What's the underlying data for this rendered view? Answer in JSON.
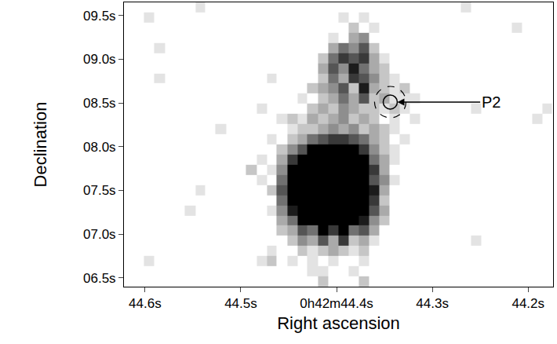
{
  "chart_data": {
    "type": "heatmap",
    "xlabel": "Right ascension",
    "ylabel": "Declination",
    "color": "#000000",
    "zlim": [
      0,
      9
    ],
    "xlim": [
      44.622,
      44.174
    ],
    "xticks": [
      {
        "value": 44.6,
        "label": "44.6s"
      },
      {
        "value": 44.5,
        "label": "44.5s"
      },
      {
        "value": 44.4,
        "label": "0h42m44.4s"
      },
      {
        "value": 44.3,
        "label": "44.3s"
      },
      {
        "value": 44.2,
        "label": "44.2s"
      }
    ],
    "ylim": [
      6.4,
      9.65
    ],
    "yticks": [
      {
        "value": 6.5,
        "label": "06.5s"
      },
      {
        "value": 7.0,
        "label": "07.0s"
      },
      {
        "value": 7.5,
        "label": "07.5s"
      },
      {
        "value": 8.0,
        "label": "08.0s"
      },
      {
        "value": 8.5,
        "label": "08.5s"
      },
      {
        "value": 9.0,
        "label": "09.0s"
      },
      {
        "value": 9.5,
        "label": "09.5s"
      }
    ],
    "annotations": [
      {
        "text": "P2",
        "x": 44.344,
        "y": 8.51,
        "text_x": 44.239,
        "text_y": 8.51
      }
    ],
    "x": [
      44.617,
      44.606,
      44.596,
      44.585,
      44.574,
      44.564,
      44.553,
      44.542,
      44.532,
      44.521,
      44.51,
      44.5,
      44.489,
      44.478,
      44.468,
      44.457,
      44.446,
      44.436,
      44.425,
      44.414,
      44.404,
      44.393,
      44.382,
      44.372,
      44.361,
      44.35,
      44.34,
      44.329,
      44.318,
      44.308,
      44.297,
      44.286,
      44.276,
      44.265,
      44.254,
      44.244,
      44.233,
      44.222,
      44.212,
      44.201,
      44.19,
      44.18
    ],
    "y": [
      9.594,
      9.478,
      9.362,
      9.246,
      9.13,
      9.013,
      8.897,
      8.781,
      8.665,
      8.549,
      8.433,
      8.317,
      8.201,
      8.085,
      7.969,
      7.853,
      7.737,
      7.621,
      7.505,
      7.388,
      7.272,
      7.156,
      7.04,
      6.924,
      6.808,
      6.692,
      6.576,
      6.46
    ],
    "z": [
      [
        0,
        0,
        0,
        0,
        0,
        0,
        0,
        1,
        0,
        0,
        0,
        0,
        0,
        0,
        0,
        0,
        0,
        0,
        0,
        0,
        0,
        0,
        0,
        0,
        0,
        0,
        0,
        0,
        0,
        0,
        0,
        0,
        0,
        1,
        0,
        0,
        0,
        0,
        0,
        0,
        0,
        0
      ],
      [
        0,
        0,
        1,
        0,
        0,
        0,
        0,
        0,
        0,
        0,
        0,
        0,
        0,
        0,
        0,
        0,
        0,
        0,
        0,
        0,
        0,
        1,
        0,
        1,
        0,
        0,
        0,
        0,
        0,
        0,
        0,
        0,
        0,
        0,
        0,
        0,
        0,
        0,
        0,
        0,
        0,
        0
      ],
      [
        0,
        0,
        0,
        0,
        0,
        0,
        0,
        0,
        0,
        0,
        0,
        0,
        0,
        0,
        0,
        0,
        0,
        0,
        0,
        0,
        0,
        0,
        2,
        0,
        1,
        0,
        0,
        0,
        0,
        0,
        0,
        0,
        0,
        0,
        0,
        0,
        0,
        0,
        1,
        0,
        0,
        0
      ],
      [
        0,
        0,
        0,
        0,
        0,
        0,
        0,
        0,
        0,
        0,
        0,
        0,
        0,
        0,
        0,
        0,
        0,
        0,
        0,
        0,
        1,
        0,
        3,
        4,
        0,
        0,
        0,
        0,
        0,
        0,
        0,
        0,
        0,
        0,
        0,
        0,
        0,
        0,
        0,
        0,
        0,
        0
      ],
      [
        0,
        0,
        0,
        1,
        0,
        0,
        0,
        0,
        0,
        0,
        0,
        0,
        0,
        0,
        0,
        0,
        0,
        0,
        0,
        0,
        3,
        5,
        4,
        6,
        2,
        0,
        0,
        0,
        0,
        0,
        0,
        0,
        0,
        0,
        0,
        0,
        0,
        0,
        0,
        0,
        0,
        0
      ],
      [
        0,
        0,
        0,
        0,
        0,
        0,
        0,
        0,
        0,
        0,
        0,
        0,
        0,
        0,
        0,
        0,
        0,
        0,
        0,
        2,
        5,
        7,
        6,
        7,
        3,
        1,
        0,
        0,
        0,
        0,
        0,
        0,
        0,
        0,
        0,
        0,
        0,
        0,
        0,
        0,
        0,
        0
      ],
      [
        0,
        0,
        0,
        0,
        0,
        0,
        0,
        0,
        0,
        0,
        0,
        0,
        0,
        0,
        0,
        0,
        0,
        0,
        0,
        3,
        6,
        4,
        8,
        5,
        3,
        2,
        0,
        0,
        0,
        0,
        0,
        0,
        0,
        0,
        0,
        0,
        0,
        0,
        0,
        0,
        0,
        0
      ],
      [
        0,
        0,
        0,
        1,
        0,
        0,
        0,
        0,
        0,
        0,
        0,
        0,
        0,
        0,
        1,
        0,
        0,
        0,
        0,
        2,
        5,
        3,
        7,
        6,
        4,
        2,
        1,
        0,
        0,
        0,
        0,
        0,
        0,
        0,
        0,
        0,
        0,
        0,
        0,
        0,
        0,
        0
      ],
      [
        0,
        0,
        0,
        0,
        0,
        0,
        0,
        0,
        0,
        0,
        0,
        0,
        0,
        0,
        0,
        0,
        0,
        0,
        2,
        3,
        4,
        6,
        2,
        8,
        3,
        2,
        1,
        2,
        0,
        0,
        0,
        0,
        0,
        0,
        0,
        0,
        0,
        0,
        0,
        0,
        0,
        0
      ],
      [
        0,
        0,
        0,
        0,
        0,
        0,
        0,
        0,
        0,
        0,
        0,
        0,
        0,
        0,
        0,
        0,
        0,
        1,
        0,
        2,
        3,
        5,
        3,
        6,
        2,
        3,
        1,
        1,
        1,
        0,
        0,
        0,
        0,
        0,
        0,
        0,
        0,
        0,
        0,
        0,
        0,
        0
      ],
      [
        0,
        0,
        0,
        0,
        0,
        0,
        0,
        0,
        0,
        0,
        0,
        0,
        0,
        1,
        0,
        0,
        0,
        0,
        2,
        3,
        2,
        4,
        3,
        2,
        2,
        1,
        2,
        1,
        0,
        0,
        0,
        0,
        0,
        0,
        1,
        0,
        0,
        0,
        0,
        0,
        0,
        1
      ],
      [
        0,
        0,
        0,
        0,
        0,
        0,
        0,
        0,
        0,
        0,
        0,
        0,
        0,
        0,
        0,
        1,
        2,
        1,
        3,
        2,
        3,
        4,
        2,
        3,
        2,
        0,
        1,
        0,
        1,
        0,
        0,
        0,
        0,
        0,
        0,
        0,
        0,
        0,
        0,
        0,
        1,
        0
      ],
      [
        0,
        0,
        0,
        0,
        0,
        0,
        0,
        0,
        0,
        1,
        0,
        0,
        0,
        0,
        0,
        0,
        1,
        2,
        2,
        3,
        4,
        3,
        4,
        2,
        3,
        2,
        1,
        0,
        0,
        0,
        0,
        0,
        0,
        0,
        0,
        0,
        0,
        0,
        0,
        0,
        0,
        0
      ],
      [
        0,
        0,
        0,
        0,
        0,
        0,
        0,
        0,
        0,
        0,
        0,
        0,
        0,
        0,
        1,
        0,
        2,
        3,
        5,
        6,
        7,
        7,
        6,
        5,
        3,
        2,
        0,
        1,
        0,
        0,
        0,
        0,
        0,
        0,
        0,
        0,
        0,
        0,
        0,
        0,
        0,
        0
      ],
      [
        0,
        0,
        0,
        0,
        0,
        0,
        0,
        0,
        0,
        0,
        0,
        0,
        0,
        0,
        0,
        2,
        4,
        6,
        9,
        9,
        9,
        9,
        9,
        7,
        4,
        2,
        1,
        0,
        0,
        0,
        0,
        0,
        0,
        0,
        0,
        0,
        0,
        0,
        0,
        0,
        0,
        0
      ],
      [
        0,
        0,
        0,
        0,
        0,
        0,
        0,
        0,
        0,
        0,
        0,
        0,
        0,
        1,
        0,
        3,
        7,
        9,
        9,
        9,
        9,
        9,
        9,
        9,
        5,
        3,
        1,
        0,
        0,
        0,
        0,
        0,
        0,
        0,
        0,
        0,
        0,
        0,
        0,
        0,
        0,
        0
      ],
      [
        0,
        0,
        0,
        0,
        0,
        0,
        0,
        0,
        0,
        0,
        0,
        0,
        2,
        0,
        1,
        4,
        9,
        9,
        9,
        9,
        9,
        9,
        9,
        9,
        7,
        3,
        0,
        0,
        0,
        0,
        0,
        0,
        0,
        0,
        0,
        0,
        0,
        0,
        0,
        0,
        0,
        0
      ],
      [
        0,
        0,
        0,
        0,
        0,
        0,
        0,
        0,
        0,
        0,
        0,
        0,
        0,
        1,
        0,
        5,
        9,
        9,
        9,
        9,
        9,
        9,
        9,
        9,
        6,
        4,
        1,
        0,
        0,
        0,
        0,
        0,
        0,
        0,
        0,
        0,
        0,
        0,
        0,
        0,
        0,
        0
      ],
      [
        0,
        0,
        0,
        0,
        0,
        0,
        0,
        1,
        0,
        0,
        0,
        0,
        0,
        0,
        2,
        6,
        9,
        9,
        9,
        9,
        9,
        9,
        9,
        9,
        8,
        3,
        0,
        0,
        0,
        0,
        0,
        0,
        0,
        0,
        0,
        0,
        0,
        0,
        0,
        0,
        0,
        0
      ],
      [
        0,
        0,
        0,
        0,
        0,
        0,
        0,
        0,
        0,
        0,
        0,
        0,
        0,
        0,
        0,
        5,
        9,
        9,
        9,
        9,
        9,
        9,
        9,
        9,
        7,
        2,
        0,
        0,
        0,
        0,
        0,
        0,
        0,
        0,
        0,
        0,
        0,
        0,
        0,
        0,
        0,
        0
      ],
      [
        0,
        0,
        0,
        0,
        0,
        0,
        1,
        0,
        0,
        0,
        0,
        0,
        0,
        0,
        1,
        4,
        8,
        9,
        9,
        9,
        9,
        9,
        9,
        9,
        6,
        3,
        0,
        0,
        0,
        0,
        0,
        0,
        0,
        0,
        0,
        0,
        0,
        0,
        0,
        0,
        0,
        0
      ],
      [
        0,
        0,
        0,
        0,
        0,
        0,
        0,
        0,
        0,
        0,
        0,
        0,
        0,
        0,
        0,
        3,
        5,
        9,
        9,
        9,
        9,
        9,
        9,
        8,
        4,
        2,
        0,
        0,
        0,
        0,
        0,
        0,
        0,
        0,
        0,
        0,
        0,
        0,
        0,
        0,
        0,
        0
      ],
      [
        0,
        0,
        0,
        0,
        0,
        0,
        0,
        0,
        0,
        0,
        0,
        0,
        0,
        0,
        0,
        2,
        3,
        6,
        5,
        9,
        7,
        9,
        5,
        6,
        3,
        0,
        0,
        0,
        0,
        0,
        0,
        0,
        0,
        0,
        0,
        0,
        0,
        0,
        0,
        0,
        0,
        0
      ],
      [
        0,
        0,
        0,
        0,
        0,
        0,
        0,
        0,
        0,
        0,
        0,
        0,
        0,
        0,
        0,
        0,
        2,
        4,
        3,
        6,
        3,
        7,
        2,
        3,
        1,
        0,
        0,
        0,
        0,
        0,
        0,
        0,
        0,
        0,
        1,
        0,
        0,
        0,
        0,
        0,
        0,
        0
      ],
      [
        0,
        0,
        0,
        0,
        0,
        0,
        0,
        0,
        0,
        0,
        0,
        0,
        0,
        0,
        1,
        0,
        0,
        2,
        1,
        2,
        3,
        2,
        1,
        2,
        0,
        0,
        0,
        0,
        0,
        0,
        0,
        0,
        0,
        0,
        0,
        0,
        0,
        0,
        0,
        0,
        0,
        0
      ],
      [
        0,
        0,
        1,
        0,
        0,
        0,
        0,
        0,
        0,
        0,
        0,
        0,
        0,
        1,
        2,
        0,
        1,
        0,
        1,
        0,
        1,
        0,
        0,
        1,
        0,
        0,
        0,
        0,
        0,
        0,
        0,
        0,
        0,
        0,
        0,
        0,
        0,
        0,
        0,
        0,
        0,
        0
      ],
      [
        0,
        0,
        0,
        0,
        0,
        0,
        0,
        0,
        0,
        0,
        0,
        0,
        0,
        0,
        0,
        0,
        0,
        0,
        1,
        1,
        0,
        0,
        1,
        0,
        0,
        0,
        0,
        0,
        0,
        0,
        0,
        0,
        0,
        0,
        0,
        0,
        0,
        0,
        0,
        0,
        0,
        0
      ],
      [
        0,
        0,
        0,
        0,
        0,
        0,
        0,
        0,
        0,
        0,
        0,
        0,
        0,
        0,
        0,
        0,
        0,
        0,
        0,
        2,
        0,
        0,
        0,
        2,
        0,
        0,
        0,
        0,
        0,
        0,
        0,
        0,
        0,
        0,
        0,
        0,
        0,
        0,
        0,
        0,
        0,
        0
      ]
    ]
  }
}
